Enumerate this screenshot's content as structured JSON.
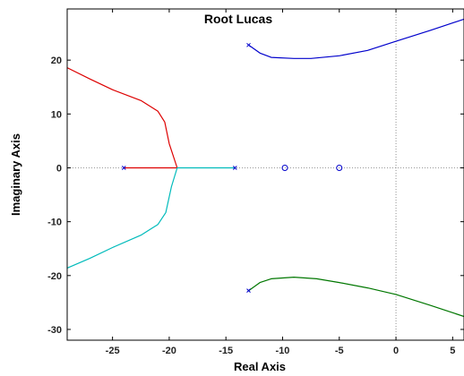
{
  "chart_data": {
    "type": "line",
    "title": "Root Lucas",
    "xlabel": "Real Axis",
    "ylabel": "Imaginary Axis",
    "xlim": [
      -29,
      6
    ],
    "ylim": [
      -32,
      29.5
    ],
    "xticks": [
      -25,
      -20,
      -15,
      -10,
      -5,
      0,
      5
    ],
    "yticks": [
      -30,
      -20,
      -10,
      0,
      10,
      20
    ],
    "grid": false,
    "reference_lines": {
      "x": 0,
      "y": 0,
      "style": "dotted"
    },
    "series": [
      {
        "color": "#0000cc",
        "points": [
          [
            -13,
            22.8
          ],
          [
            -12,
            21.3
          ],
          [
            -11,
            20.5
          ],
          [
            -9,
            20.3
          ],
          [
            -7.5,
            20.3
          ],
          [
            -5,
            20.8
          ],
          [
            -2.5,
            21.8
          ],
          [
            0,
            23.5
          ],
          [
            3,
            25.5
          ],
          [
            6,
            27.6
          ]
        ]
      },
      {
        "color": "#007700",
        "points": [
          [
            -13,
            -22.8
          ],
          [
            -12,
            -21.3
          ],
          [
            -11,
            -20.6
          ],
          [
            -9,
            -20.3
          ],
          [
            -7,
            -20.6
          ],
          [
            -5,
            -21.3
          ],
          [
            -2.5,
            -22.3
          ],
          [
            0,
            -23.5
          ],
          [
            3,
            -25.5
          ],
          [
            6,
            -27.6
          ]
        ]
      },
      {
        "color": "#dd0000",
        "points": [
          [
            -24,
            0
          ],
          [
            -19.3,
            0
          ],
          [
            -20,
            4.5
          ],
          [
            -20.4,
            8.5
          ],
          [
            -21,
            10.5
          ],
          [
            -22.5,
            12.5
          ],
          [
            -25,
            14.5
          ],
          [
            -27,
            16.5
          ],
          [
            -29,
            18.6
          ]
        ]
      },
      {
        "color": "#00bbbb",
        "points": [
          [
            -14.2,
            0
          ],
          [
            -19.3,
            0
          ],
          [
            -19.8,
            -3.5
          ],
          [
            -20.3,
            -8.3
          ],
          [
            -21,
            -10.5
          ],
          [
            -22.5,
            -12.5
          ],
          [
            -25,
            -14.8
          ],
          [
            -27,
            -16.8
          ],
          [
            -29,
            -18.6
          ]
        ]
      }
    ],
    "poles": [
      [
        -13,
        22.8
      ],
      [
        -13,
        -22.8
      ],
      [
        -24,
        0
      ],
      [
        -14.2,
        0
      ]
    ],
    "zeros": [
      [
        -9.8,
        0
      ],
      [
        -5,
        0
      ]
    ],
    "marker_color": "#0000cc",
    "reference_color": "#777777",
    "frame_color": "#000000"
  }
}
